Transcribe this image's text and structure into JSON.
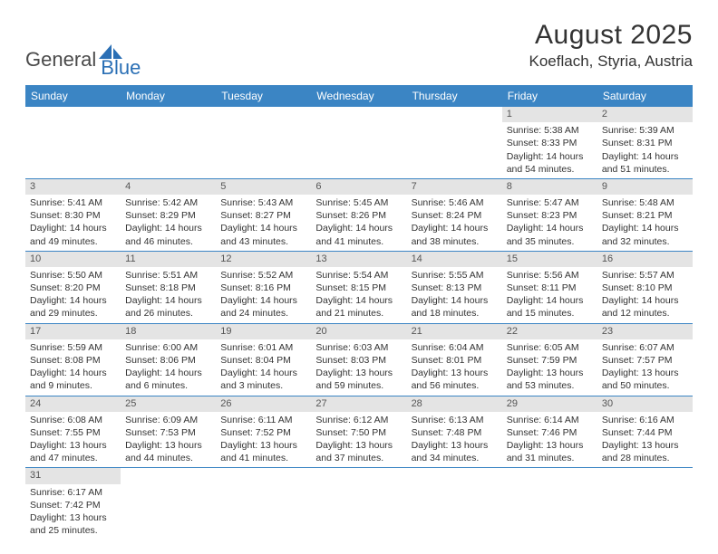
{
  "header": {
    "logo_general": "General",
    "logo_blue": "Blue",
    "title": "August 2025",
    "location": "Koeflach, Styria, Austria"
  },
  "colors": {
    "header_bg": "#3b85c4",
    "header_text": "#ffffff",
    "daynum_bg": "#e4e4e4",
    "row_divider": "#3b85c4",
    "logo_blue": "#2a6fb5",
    "logo_gray": "#4a4a4a"
  },
  "weekdays": [
    "Sunday",
    "Monday",
    "Tuesday",
    "Wednesday",
    "Thursday",
    "Friday",
    "Saturday"
  ],
  "weeks": [
    [
      null,
      null,
      null,
      null,
      null,
      {
        "n": "1",
        "sr": "5:38 AM",
        "ss": "8:33 PM",
        "dl": "14 hours and 54 minutes."
      },
      {
        "n": "2",
        "sr": "5:39 AM",
        "ss": "8:31 PM",
        "dl": "14 hours and 51 minutes."
      }
    ],
    [
      {
        "n": "3",
        "sr": "5:41 AM",
        "ss": "8:30 PM",
        "dl": "14 hours and 49 minutes."
      },
      {
        "n": "4",
        "sr": "5:42 AM",
        "ss": "8:29 PM",
        "dl": "14 hours and 46 minutes."
      },
      {
        "n": "5",
        "sr": "5:43 AM",
        "ss": "8:27 PM",
        "dl": "14 hours and 43 minutes."
      },
      {
        "n": "6",
        "sr": "5:45 AM",
        "ss": "8:26 PM",
        "dl": "14 hours and 41 minutes."
      },
      {
        "n": "7",
        "sr": "5:46 AM",
        "ss": "8:24 PM",
        "dl": "14 hours and 38 minutes."
      },
      {
        "n": "8",
        "sr": "5:47 AM",
        "ss": "8:23 PM",
        "dl": "14 hours and 35 minutes."
      },
      {
        "n": "9",
        "sr": "5:48 AM",
        "ss": "8:21 PM",
        "dl": "14 hours and 32 minutes."
      }
    ],
    [
      {
        "n": "10",
        "sr": "5:50 AM",
        "ss": "8:20 PM",
        "dl": "14 hours and 29 minutes."
      },
      {
        "n": "11",
        "sr": "5:51 AM",
        "ss": "8:18 PM",
        "dl": "14 hours and 26 minutes."
      },
      {
        "n": "12",
        "sr": "5:52 AM",
        "ss": "8:16 PM",
        "dl": "14 hours and 24 minutes."
      },
      {
        "n": "13",
        "sr": "5:54 AM",
        "ss": "8:15 PM",
        "dl": "14 hours and 21 minutes."
      },
      {
        "n": "14",
        "sr": "5:55 AM",
        "ss": "8:13 PM",
        "dl": "14 hours and 18 minutes."
      },
      {
        "n": "15",
        "sr": "5:56 AM",
        "ss": "8:11 PM",
        "dl": "14 hours and 15 minutes."
      },
      {
        "n": "16",
        "sr": "5:57 AM",
        "ss": "8:10 PM",
        "dl": "14 hours and 12 minutes."
      }
    ],
    [
      {
        "n": "17",
        "sr": "5:59 AM",
        "ss": "8:08 PM",
        "dl": "14 hours and 9 minutes."
      },
      {
        "n": "18",
        "sr": "6:00 AM",
        "ss": "8:06 PM",
        "dl": "14 hours and 6 minutes."
      },
      {
        "n": "19",
        "sr": "6:01 AM",
        "ss": "8:04 PM",
        "dl": "14 hours and 3 minutes."
      },
      {
        "n": "20",
        "sr": "6:03 AM",
        "ss": "8:03 PM",
        "dl": "13 hours and 59 minutes."
      },
      {
        "n": "21",
        "sr": "6:04 AM",
        "ss": "8:01 PM",
        "dl": "13 hours and 56 minutes."
      },
      {
        "n": "22",
        "sr": "6:05 AM",
        "ss": "7:59 PM",
        "dl": "13 hours and 53 minutes."
      },
      {
        "n": "23",
        "sr": "6:07 AM",
        "ss": "7:57 PM",
        "dl": "13 hours and 50 minutes."
      }
    ],
    [
      {
        "n": "24",
        "sr": "6:08 AM",
        "ss": "7:55 PM",
        "dl": "13 hours and 47 minutes."
      },
      {
        "n": "25",
        "sr": "6:09 AM",
        "ss": "7:53 PM",
        "dl": "13 hours and 44 minutes."
      },
      {
        "n": "26",
        "sr": "6:11 AM",
        "ss": "7:52 PM",
        "dl": "13 hours and 41 minutes."
      },
      {
        "n": "27",
        "sr": "6:12 AM",
        "ss": "7:50 PM",
        "dl": "13 hours and 37 minutes."
      },
      {
        "n": "28",
        "sr": "6:13 AM",
        "ss": "7:48 PM",
        "dl": "13 hours and 34 minutes."
      },
      {
        "n": "29",
        "sr": "6:14 AM",
        "ss": "7:46 PM",
        "dl": "13 hours and 31 minutes."
      },
      {
        "n": "30",
        "sr": "6:16 AM",
        "ss": "7:44 PM",
        "dl": "13 hours and 28 minutes."
      }
    ],
    [
      {
        "n": "31",
        "sr": "6:17 AM",
        "ss": "7:42 PM",
        "dl": "13 hours and 25 minutes."
      },
      null,
      null,
      null,
      null,
      null,
      null
    ]
  ],
  "labels": {
    "sunrise": "Sunrise:",
    "sunset": "Sunset:",
    "daylight": "Daylight:"
  }
}
